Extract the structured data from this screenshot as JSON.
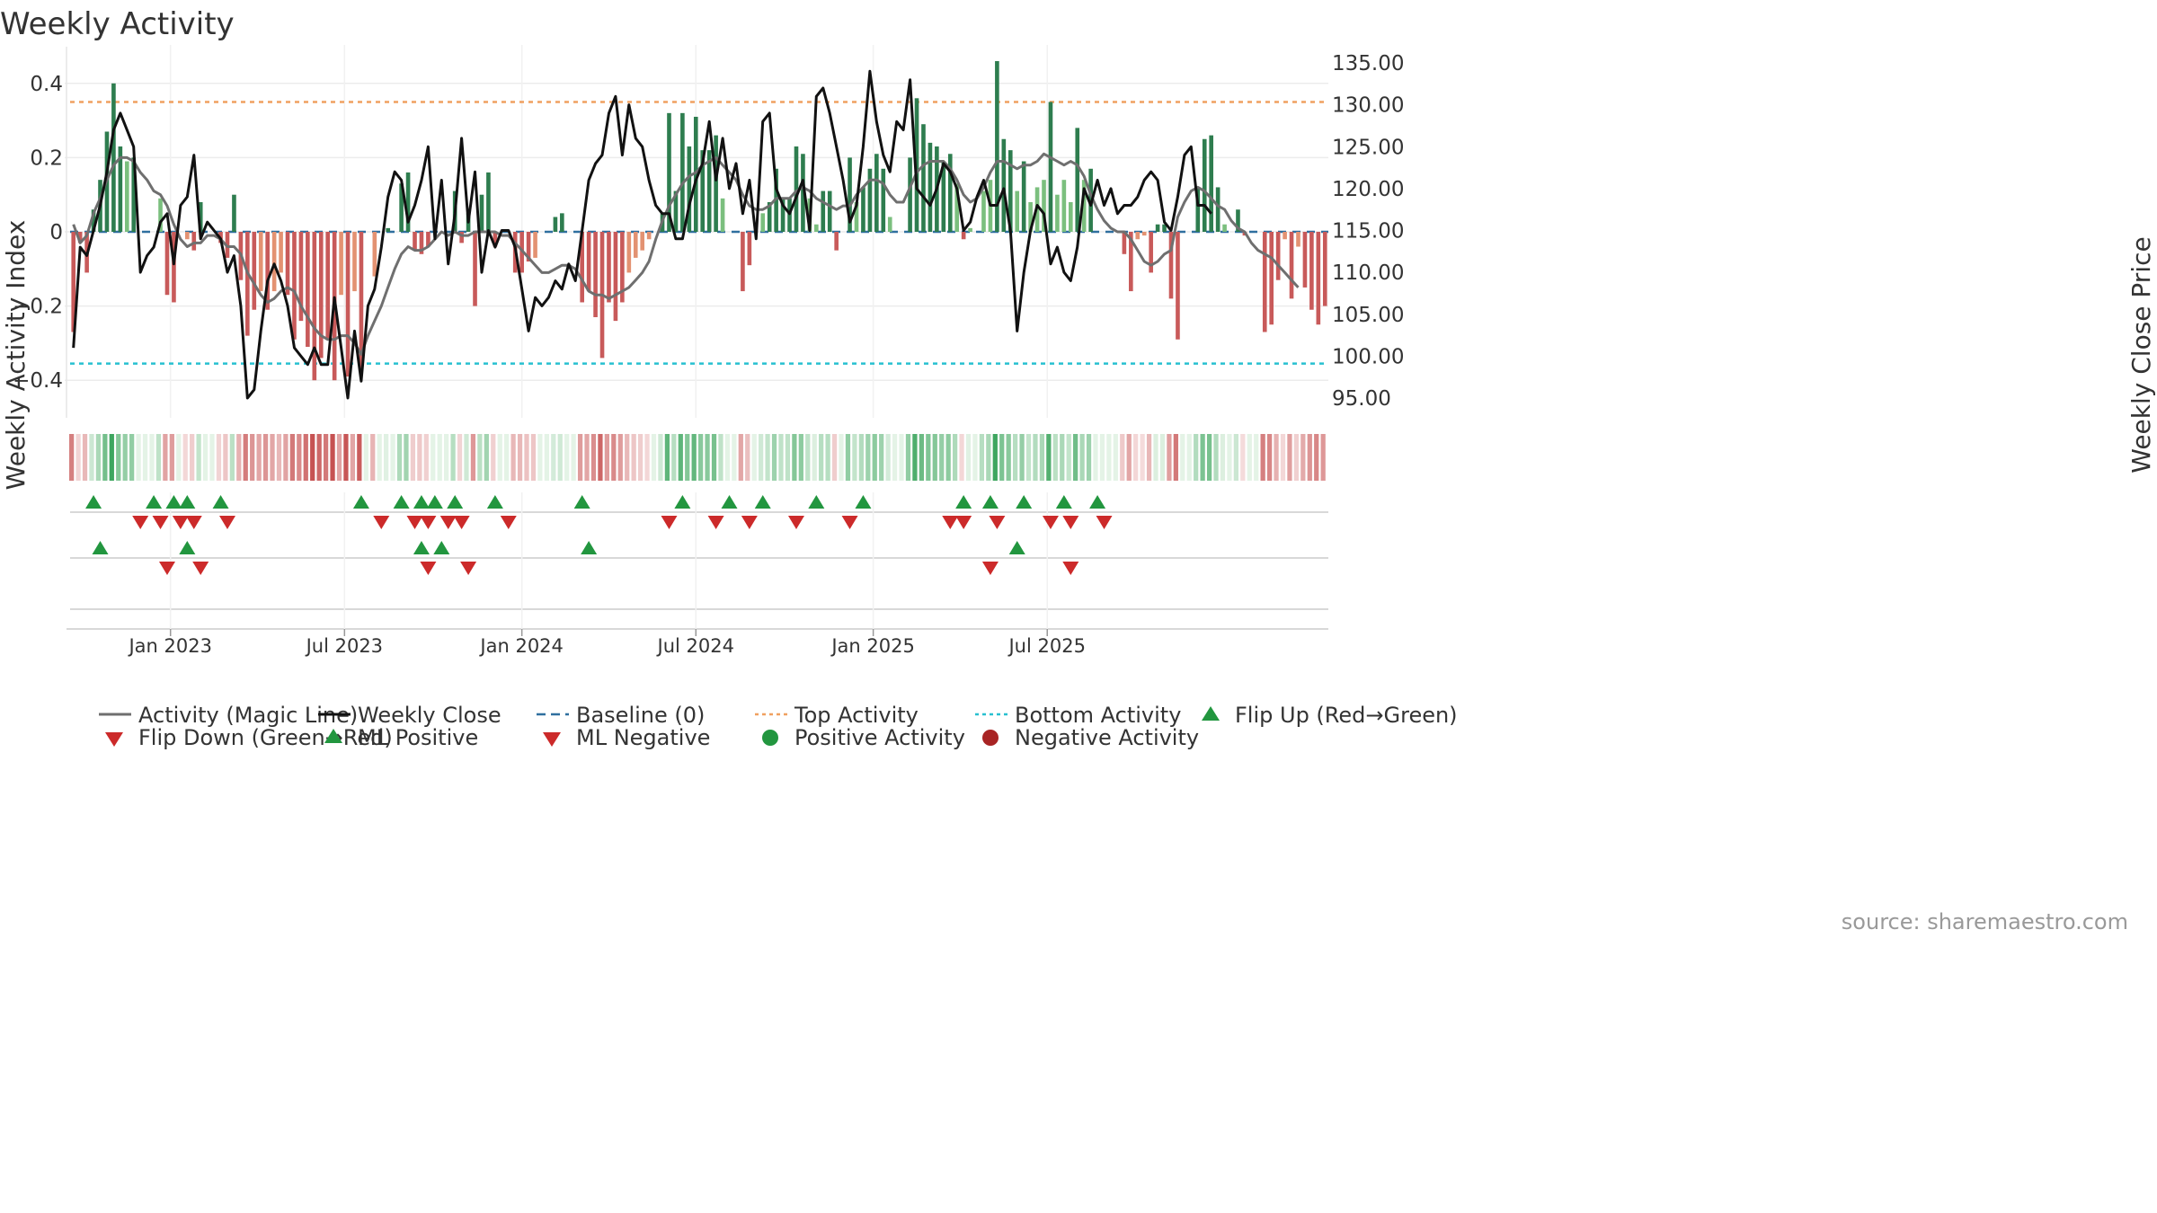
{
  "chart_data": {
    "type": "bar",
    "title": "Weekly Activity",
    "ylabel": "Weekly Activity Index",
    "y2label": "Weekly Close Price",
    "ylim": [
      -0.5,
      0.5
    ],
    "y2lim": [
      92.5,
      137.5
    ],
    "yticks": [
      {
        "v": 0.4,
        "label": "0.4"
      },
      {
        "v": 0.2,
        "label": "0.2"
      },
      {
        "v": 0,
        "label": "0"
      },
      {
        "v": -0.2,
        "label": "−0.2"
      },
      {
        "v": -0.4,
        "label": "−0.4"
      }
    ],
    "y2ticks": [
      {
        "v": 135,
        "label": "135.00"
      },
      {
        "v": 130,
        "label": "130.00"
      },
      {
        "v": 125,
        "label": "125.00"
      },
      {
        "v": 120,
        "label": "120.00"
      },
      {
        "v": 115,
        "label": "115.00"
      },
      {
        "v": 110,
        "label": "110.00"
      },
      {
        "v": 105,
        "label": "105.00"
      },
      {
        "v": 100,
        "label": "100.00"
      },
      {
        "v": 95,
        "label": "95.00"
      }
    ],
    "xticks": [
      {
        "week": 14.5,
        "label": "Jan 2023"
      },
      {
        "week": 40.5,
        "label": "Jul 2023"
      },
      {
        "week": 67,
        "label": "Jan 2024"
      },
      {
        "week": 93,
        "label": "Jul 2024"
      },
      {
        "week": 119.5,
        "label": "Jan 2025"
      },
      {
        "week": 145.5,
        "label": "Jul 2025"
      }
    ],
    "top_activity": 0.35,
    "bottom_activity": -0.355,
    "series": [
      {
        "name": "Weekly Activity",
        "values": [
          -0.27,
          -0.03,
          -0.11,
          0.06,
          0.14,
          0.27,
          0.4,
          0.23,
          0.19,
          0.2,
          0,
          0,
          0,
          0.09,
          -0.17,
          -0.19,
          0,
          -0.02,
          -0.05,
          0.08,
          0,
          0,
          -0.03,
          -0.07,
          0.1,
          -0.13,
          -0.28,
          -0.21,
          -0.16,
          -0.21,
          -0.16,
          -0.11,
          -0.17,
          -0.29,
          -0.24,
          -0.31,
          -0.4,
          -0.34,
          -0.29,
          -0.4,
          -0.17,
          -0.39,
          -0.16,
          -0.37,
          0,
          -0.12,
          0,
          0.01,
          0,
          0.13,
          0.16,
          -0.05,
          -0.06,
          -0.04,
          0,
          0,
          0,
          0.11,
          -0.03,
          0.05,
          -0.2,
          0.1,
          0.16,
          -0.04,
          0,
          0,
          -0.11,
          -0.11,
          -0.08,
          -0.07,
          0,
          0,
          0.04,
          0.05,
          0,
          0,
          -0.19,
          -0.16,
          -0.23,
          -0.34,
          -0.19,
          -0.24,
          -0.19,
          -0.11,
          -0.07,
          -0.05,
          -0.02,
          0,
          0.05,
          0.32,
          0.11,
          0.32,
          0.23,
          0.31,
          0.22,
          0.22,
          0.26,
          0.09,
          0,
          0,
          -0.16,
          -0.09,
          0,
          0.05,
          0.08,
          0.17,
          0.09,
          0.09,
          0.23,
          0.21,
          0.09,
          0.02,
          0.11,
          0.11,
          -0.05,
          0,
          0.2,
          0.08,
          0.12,
          0.17,
          0.21,
          0.17,
          0.04,
          0,
          0,
          0.2,
          0.36,
          0.29,
          0.24,
          0.23,
          0.19,
          0.21,
          0.13,
          -0.02,
          0.01,
          0,
          0.11,
          0.14,
          0.46,
          0.25,
          0.22,
          0.11,
          0.19,
          0.08,
          0.12,
          0.14,
          0.35,
          0.1,
          0.14,
          0.08,
          0.28,
          0.14,
          0.17,
          0,
          0,
          0,
          0,
          -0.06,
          -0.16,
          -0.02,
          -0.01,
          -0.11,
          0.02,
          0.02,
          -0.18,
          -0.29,
          0,
          0,
          0.12,
          0.25,
          0.26,
          0.12,
          0.02,
          0,
          0.06,
          -0.01,
          0,
          0,
          -0.27,
          -0.25,
          -0.13,
          -0.02,
          -0.18,
          -0.04,
          -0.15,
          -0.21,
          -0.25,
          -0.2
        ]
      },
      {
        "name": "Activity (Magic Line)",
        "values": [
          0.02,
          -0.03,
          -0.01,
          0.05,
          0.09,
          0.14,
          0.18,
          0.2,
          0.2,
          0.19,
          0.16,
          0.14,
          0.11,
          0.1,
          0.07,
          0.02,
          -0.02,
          -0.04,
          -0.03,
          -0.03,
          -0.01,
          -0.01,
          -0.02,
          -0.04,
          -0.04,
          -0.06,
          -0.11,
          -0.14,
          -0.17,
          -0.19,
          -0.18,
          -0.16,
          -0.15,
          -0.16,
          -0.2,
          -0.23,
          -0.26,
          -0.28,
          -0.29,
          -0.29,
          -0.28,
          -0.28,
          -0.3,
          -0.33,
          -0.28,
          -0.24,
          -0.2,
          -0.15,
          -0.1,
          -0.06,
          -0.04,
          -0.05,
          -0.05,
          -0.04,
          -0.02,
          0,
          -0.01,
          0,
          -0.01,
          -0.01,
          0,
          0,
          0,
          0,
          -0.01,
          -0.01,
          -0.03,
          -0.05,
          -0.07,
          -0.09,
          -0.11,
          -0.11,
          -0.1,
          -0.09,
          -0.09,
          -0.1,
          -0.13,
          -0.16,
          -0.17,
          -0.17,
          -0.18,
          -0.17,
          -0.16,
          -0.15,
          -0.13,
          -0.11,
          -0.08,
          -0.02,
          0.03,
          0.07,
          0.1,
          0.13,
          0.15,
          0.16,
          0.18,
          0.19,
          0.2,
          0.18,
          0.16,
          0.14,
          0.1,
          0.07,
          0.06,
          0.06,
          0.07,
          0.09,
          0.09,
          0.09,
          0.11,
          0.12,
          0.11,
          0.09,
          0.08,
          0.07,
          0.06,
          0.07,
          0.07,
          0.1,
          0.12,
          0.14,
          0.14,
          0.13,
          0.1,
          0.08,
          0.08,
          0.12,
          0.16,
          0.18,
          0.19,
          0.19,
          0.19,
          0.17,
          0.14,
          0.1,
          0.08,
          0.09,
          0.12,
          0.16,
          0.19,
          0.19,
          0.18,
          0.17,
          0.18,
          0.18,
          0.19,
          0.21,
          0.2,
          0.19,
          0.18,
          0.19,
          0.18,
          0.15,
          0.1,
          0.06,
          0.03,
          0.01,
          0,
          0,
          -0.02,
          -0.05,
          -0.08,
          -0.09,
          -0.08,
          -0.06,
          -0.05,
          0.04,
          0.08,
          0.11,
          0.12,
          0.11,
          0.09,
          0.07,
          0.06,
          0.03,
          0.01,
          0,
          -0.03,
          -0.05,
          -0.06,
          -0.07,
          -0.09,
          -0.11,
          -0.13,
          -0.15
        ]
      },
      {
        "name": "Weekly Close",
        "values": [
          101,
          113,
          112,
          115,
          118,
          122,
          127,
          129,
          127,
          125,
          110,
          112,
          113,
          116,
          117,
          111,
          118,
          119,
          124,
          114,
          116,
          115,
          114,
          110,
          112,
          106,
          95,
          96,
          103,
          109,
          111,
          109,
          106,
          101,
          100,
          99,
          101,
          99,
          99,
          107,
          101,
          95,
          103,
          97,
          106,
          108,
          113,
          119,
          122,
          121,
          116,
          118,
          121,
          125,
          114,
          121,
          111,
          117,
          126,
          116,
          122,
          110,
          115,
          113,
          115,
          115,
          113,
          108,
          103,
          107,
          106,
          107,
          109,
          108,
          111,
          109,
          115,
          121,
          123,
          124,
          129,
          131,
          124,
          130,
          126,
          125,
          121,
          118,
          117,
          117,
          114,
          114,
          118,
          121,
          123,
          128,
          121,
          126,
          120,
          123,
          117,
          121,
          114,
          128,
          129,
          120,
          118,
          117,
          119,
          121,
          115,
          131,
          132,
          129,
          125,
          121,
          116,
          118,
          125,
          134,
          128,
          124,
          122,
          128,
          127,
          133,
          120,
          119,
          118,
          120,
          123,
          122,
          120,
          115,
          116,
          119,
          121,
          118,
          118,
          120,
          115,
          103,
          110,
          115,
          118,
          117,
          111,
          113,
          110,
          109,
          113,
          120,
          118,
          121,
          118,
          120,
          117,
          118,
          118,
          119,
          121,
          122,
          121,
          116,
          115,
          119,
          124,
          125,
          118,
          118,
          117
        ]
      },
      {
        "name": "Baseline (0)",
        "values": [
          0
        ]
      },
      {
        "name": "Top Activity",
        "values": [
          0.35
        ]
      },
      {
        "name": "Bottom Activity",
        "values": [
          -0.355
        ]
      }
    ],
    "flip_up": [
      3,
      12,
      15,
      17,
      22,
      43,
      49,
      52,
      54,
      57,
      63,
      76,
      91,
      98,
      103,
      111,
      118,
      133,
      137,
      142,
      148,
      153
    ],
    "flip_down": [
      10,
      13,
      16,
      18,
      23,
      46,
      51,
      53,
      56,
      58,
      65,
      89,
      96,
      101,
      108,
      116,
      131,
      133,
      138,
      146,
      149,
      154
    ],
    "ml_positive": [
      4,
      17,
      52,
      55,
      77,
      141
    ],
    "ml_negative": [
      14,
      19,
      53,
      59,
      137,
      149
    ],
    "legend": [
      {
        "label": "Activity (Magic Line)",
        "symbol": "line-gray"
      },
      {
        "label": "Weekly Close",
        "symbol": "line-black"
      },
      {
        "label": "Baseline (0)",
        "symbol": "dash-blue"
      },
      {
        "label": "Top Activity",
        "symbol": "dot-orange"
      },
      {
        "label": "Bottom Activity",
        "symbol": "dot-cyan"
      },
      {
        "label": "Flip Up (Red→Green)",
        "symbol": "tri-up-green"
      },
      {
        "label": "Flip Down (Green→Red)",
        "symbol": "tri-down-red"
      },
      {
        "label": "ML Positive",
        "symbol": "tri-up-green"
      },
      {
        "label": "ML Negative",
        "symbol": "tri-down-red"
      },
      {
        "label": "Positive Activity",
        "symbol": "circle-green"
      },
      {
        "label": "Negative Activity",
        "symbol": "circle-red"
      }
    ],
    "source": "source: sharemaestro.com"
  },
  "colors": {
    "pos_strong": "#2e7d4f",
    "pos_light": "#7bbf7e",
    "neg_strong": "#c85a5a",
    "neg_light": "#e39272",
    "magic_line": "#6f6f6f",
    "close_line": "#111111",
    "baseline": "#2f6f9f",
    "top": "#f0a060",
    "bottom": "#28c0d0",
    "marker_green": "#22963f",
    "marker_red": "#cc2a2a"
  }
}
